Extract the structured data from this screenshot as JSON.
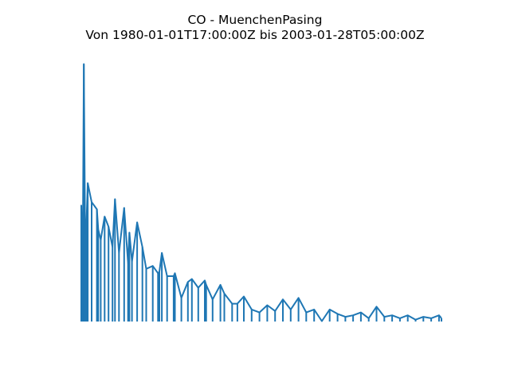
{
  "chart_data": {
    "type": "line",
    "title": "CO - MuenchenPasing",
    "subtitle": "Von 1980-01-01T17:00:00Z bis 2003-01-28T05:00:00Z",
    "xlabel": "",
    "ylabel": "",
    "x_range": [
      "1980-01-01T17:00:00Z",
      "2003-01-28T05:00:00Z"
    ],
    "axes_visible": false,
    "grid": false,
    "series_color": "#1f77b4",
    "series": [
      {
        "name": "",
        "x": [
          "1980-01-01",
          "1980-02-01",
          "1980-03-01",
          "1980-04-01",
          "1980-05-01",
          "1980-06-01",
          "1980-09-01",
          "1981-01-01",
          "1981-02-01",
          "1981-04-01",
          "1981-07-01",
          "1981-10-01",
          "1982-01-01",
          "1982-03-01",
          "1982-06-01",
          "1982-10-01",
          "1983-01-01",
          "1983-02-01",
          "1983-04-01",
          "1983-08-01",
          "1983-12-01",
          "1984-03-01",
          "1984-08-01",
          "1984-12-01",
          "1985-01-01",
          "1985-03-01",
          "1985-07-01",
          "1985-12-01",
          "1986-01-01",
          "1986-06-01",
          "1986-11-01",
          "1987-02-01",
          "1987-07-01",
          "1987-12-01",
          "1988-01-01",
          "1988-06-01",
          "1988-12-01",
          "1989-03-01",
          "1989-09-01",
          "1990-01-01",
          "1990-06-01",
          "1990-12-01",
          "1991-06-01",
          "1991-12-01",
          "1992-06-01",
          "1992-12-01",
          "1993-06-01",
          "1993-12-01",
          "1994-06-01",
          "1994-12-01",
          "1995-06-01",
          "1995-12-01",
          "1996-06-01",
          "1996-12-01",
          "1997-06-01",
          "1997-12-01",
          "1998-06-01",
          "1998-12-01",
          "1999-06-01",
          "1999-12-01",
          "2000-06-01",
          "2000-12-01",
          "2001-06-01",
          "2001-12-01",
          "2002-06-01",
          "2002-12-01",
          "2003-01-28"
        ],
        "y": [
          10.8,
          4.9,
          20.5,
          8.8,
          9.5,
          12.3,
          11.0,
          10.5,
          9.1,
          8.4,
          10.0,
          9.3,
          7.9,
          11.2,
          7.5,
          10.6,
          6.8,
          8.9,
          6.9,
          9.6,
          7.9,
          6.4,
          6.6,
          6.1,
          6.2,
          7.5,
          5.9,
          5.9,
          6.1,
          4.4,
          5.5,
          5.7,
          5.1,
          5.6,
          5.3,
          4.3,
          5.3,
          4.7,
          4.0,
          4.0,
          4.5,
          3.6,
          3.4,
          3.9,
          3.5,
          4.3,
          3.6,
          4.4,
          3.4,
          3.6,
          2.8,
          3.6,
          3.3,
          3.1,
          3.2,
          3.4,
          3.0,
          3.8,
          3.1,
          3.2,
          3.0,
          3.2,
          2.9,
          3.1,
          3.0,
          3.2,
          3.0
        ]
      }
    ]
  }
}
